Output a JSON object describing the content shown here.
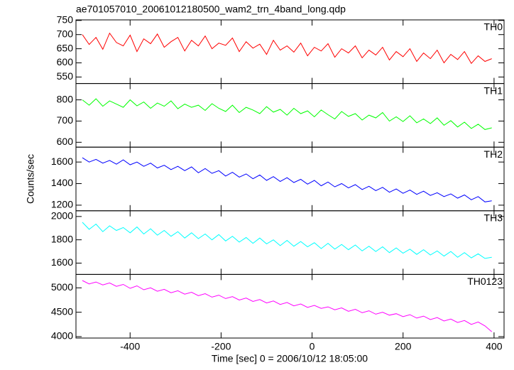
{
  "title": "ae701057010_20061012180500_wam2_trn_4band_long.qdp",
  "x_label": "Time [sec] 0 = 2006/10/12 18:05:00",
  "y_label": "Counts/sec",
  "chart_data": [
    {
      "type": "line",
      "xlim": [
        -519,
        422
      ],
      "xticks": [
        -400,
        -200,
        0,
        200,
        400
      ],
      "ylim": [
        527,
        752
      ],
      "yticks": [
        550,
        600,
        650,
        700,
        750
      ],
      "x": [
        -505,
        -490,
        -475,
        -460,
        -445,
        -430,
        -415,
        -400,
        -385,
        -370,
        -355,
        -340,
        -325,
        -310,
        -295,
        -280,
        -265,
        -250,
        -235,
        -220,
        -205,
        -190,
        -175,
        -160,
        -145,
        -130,
        -115,
        -100,
        -85,
        -70,
        -55,
        -40,
        -25,
        -10,
        5,
        20,
        35,
        50,
        65,
        80,
        95,
        110,
        125,
        140,
        155,
        170,
        185,
        200,
        215,
        230,
        245,
        260,
        275,
        290,
        305,
        320,
        335,
        350,
        365,
        380,
        395
      ],
      "series": [
        {
          "name": "TH0",
          "color": "#ff0000",
          "values": [
            700,
            665,
            690,
            648,
            705,
            672,
            660,
            698,
            640,
            685,
            668,
            702,
            655,
            675,
            690,
            642,
            680,
            660,
            695,
            650,
            670,
            662,
            688,
            640,
            675,
            652,
            666,
            630,
            680,
            645,
            660,
            638,
            670,
            625,
            655,
            642,
            668,
            620,
            650,
            635,
            660,
            618,
            645,
            628,
            655,
            610,
            640,
            622,
            650,
            605,
            635,
            615,
            645,
            600,
            630,
            612,
            640,
            598,
            625,
            605,
            615
          ]
        }
      ]
    },
    {
      "type": "line",
      "xlim": [
        -519,
        422
      ],
      "xticks": [
        -400,
        -200,
        0,
        200,
        400
      ],
      "ylim": [
        577,
        877
      ],
      "yticks": [
        600,
        700,
        800
      ],
      "x": [
        -505,
        -490,
        -475,
        -460,
        -445,
        -430,
        -415,
        -400,
        -385,
        -370,
        -355,
        -340,
        -325,
        -310,
        -295,
        -280,
        -265,
        -250,
        -235,
        -220,
        -205,
        -190,
        -175,
        -160,
        -145,
        -130,
        -115,
        -100,
        -85,
        -70,
        -55,
        -40,
        -25,
        -10,
        5,
        20,
        35,
        50,
        65,
        80,
        95,
        110,
        125,
        140,
        155,
        170,
        185,
        200,
        215,
        230,
        245,
        260,
        275,
        290,
        305,
        320,
        335,
        350,
        365,
        380,
        395
      ],
      "series": [
        {
          "name": "TH1",
          "color": "#00ff00",
          "values": [
            800,
            775,
            805,
            770,
            795,
            780,
            765,
            800,
            772,
            790,
            760,
            785,
            770,
            795,
            758,
            780,
            765,
            775,
            750,
            782,
            760,
            745,
            775,
            740,
            765,
            752,
            735,
            768,
            742,
            755,
            728,
            760,
            735,
            748,
            720,
            752,
            730,
            710,
            745,
            722,
            735,
            705,
            728,
            715,
            740,
            700,
            720,
            698,
            725,
            692,
            710,
            688,
            715,
            680,
            702,
            672,
            695,
            665,
            685,
            660,
            668
          ]
        }
      ]
    },
    {
      "type": "line",
      "xlim": [
        -519,
        422
      ],
      "xticks": [
        -400,
        -200,
        0,
        200,
        400
      ],
      "ylim": [
        1148,
        1738
      ],
      "yticks": [
        1200,
        1400,
        1600
      ],
      "x": [
        -505,
        -490,
        -475,
        -460,
        -445,
        -430,
        -415,
        -400,
        -385,
        -370,
        -355,
        -340,
        -325,
        -310,
        -295,
        -280,
        -265,
        -250,
        -235,
        -220,
        -205,
        -190,
        -175,
        -160,
        -145,
        -130,
        -115,
        -100,
        -85,
        -70,
        -55,
        -40,
        -25,
        -10,
        5,
        20,
        35,
        50,
        65,
        80,
        95,
        110,
        125,
        140,
        155,
        170,
        185,
        200,
        215,
        230,
        245,
        260,
        275,
        290,
        305,
        320,
        335,
        350,
        365,
        380,
        395
      ],
      "series": [
        {
          "name": "TH2",
          "color": "#0000ff",
          "values": [
            1640,
            1600,
            1625,
            1590,
            1615,
            1580,
            1620,
            1575,
            1600,
            1560,
            1590,
            1545,
            1570,
            1530,
            1560,
            1520,
            1555,
            1500,
            1540,
            1495,
            1520,
            1470,
            1505,
            1460,
            1490,
            1445,
            1480,
            1430,
            1465,
            1420,
            1455,
            1410,
            1440,
            1395,
            1430,
            1380,
            1415,
            1370,
            1400,
            1360,
            1390,
            1345,
            1375,
            1335,
            1365,
            1320,
            1350,
            1310,
            1340,
            1300,
            1330,
            1290,
            1315,
            1280,
            1305,
            1265,
            1295,
            1250,
            1280,
            1230,
            1240
          ]
        }
      ]
    },
    {
      "type": "line",
      "xlim": [
        -519,
        422
      ],
      "xticks": [
        -400,
        -200,
        0,
        200,
        400
      ],
      "ylim": [
        1503,
        2049
      ],
      "yticks": [
        1600,
        1800,
        2000
      ],
      "x": [
        -505,
        -490,
        -475,
        -460,
        -445,
        -430,
        -415,
        -400,
        -385,
        -370,
        -355,
        -340,
        -325,
        -310,
        -295,
        -280,
        -265,
        -250,
        -235,
        -220,
        -205,
        -190,
        -175,
        -160,
        -145,
        -130,
        -115,
        -100,
        -85,
        -70,
        -55,
        -40,
        -25,
        -10,
        5,
        20,
        35,
        50,
        65,
        80,
        95,
        110,
        125,
        140,
        155,
        170,
        185,
        200,
        215,
        230,
        245,
        260,
        275,
        290,
        305,
        320,
        335,
        350,
        365,
        380,
        395
      ],
      "series": [
        {
          "name": "TH3",
          "color": "#00ffff",
          "values": [
            1950,
            1890,
            1935,
            1870,
            1920,
            1880,
            1905,
            1860,
            1910,
            1850,
            1895,
            1840,
            1880,
            1830,
            1870,
            1815,
            1860,
            1810,
            1850,
            1800,
            1845,
            1790,
            1830,
            1780,
            1820,
            1770,
            1815,
            1765,
            1800,
            1750,
            1795,
            1745,
            1785,
            1740,
            1775,
            1725,
            1770,
            1720,
            1760,
            1715,
            1755,
            1705,
            1745,
            1700,
            1740,
            1690,
            1730,
            1685,
            1720,
            1675,
            1715,
            1670,
            1705,
            1660,
            1700,
            1650,
            1690,
            1645,
            1680,
            1640,
            1650
          ]
        }
      ]
    },
    {
      "type": "line",
      "xlim": [
        -519,
        422
      ],
      "xticks": [
        -400,
        -200,
        0,
        200,
        400
      ],
      "ylim": [
        3971,
        5275
      ],
      "yticks": [
        4000,
        4500,
        5000
      ],
      "x": [
        -505,
        -490,
        -475,
        -460,
        -445,
        -430,
        -415,
        -400,
        -385,
        -370,
        -355,
        -340,
        -325,
        -310,
        -295,
        -280,
        -265,
        -250,
        -235,
        -220,
        -205,
        -190,
        -175,
        -160,
        -145,
        -130,
        -115,
        -100,
        -85,
        -70,
        -55,
        -40,
        -25,
        -10,
        5,
        20,
        35,
        50,
        65,
        80,
        95,
        110,
        125,
        140,
        155,
        170,
        185,
        200,
        215,
        230,
        245,
        260,
        275,
        290,
        305,
        320,
        335,
        350,
        365,
        380,
        395
      ],
      "series": [
        {
          "name": "TH0123",
          "color": "#ff00ff",
          "values": [
            5150,
            5080,
            5120,
            5060,
            5100,
            5030,
            5070,
            4990,
            5040,
            4960,
            5000,
            4930,
            4970,
            4900,
            4940,
            4870,
            4910,
            4840,
            4880,
            4810,
            4850,
            4780,
            4820,
            4750,
            4790,
            4720,
            4760,
            4690,
            4730,
            4660,
            4700,
            4630,
            4670,
            4600,
            4640,
            4580,
            4610,
            4550,
            4590,
            4520,
            4560,
            4490,
            4530,
            4460,
            4500,
            4440,
            4470,
            4410,
            4450,
            4380,
            4420,
            4350,
            4390,
            4320,
            4360,
            4290,
            4330,
            4250,
            4300,
            4220,
            4100
          ]
        }
      ]
    }
  ]
}
